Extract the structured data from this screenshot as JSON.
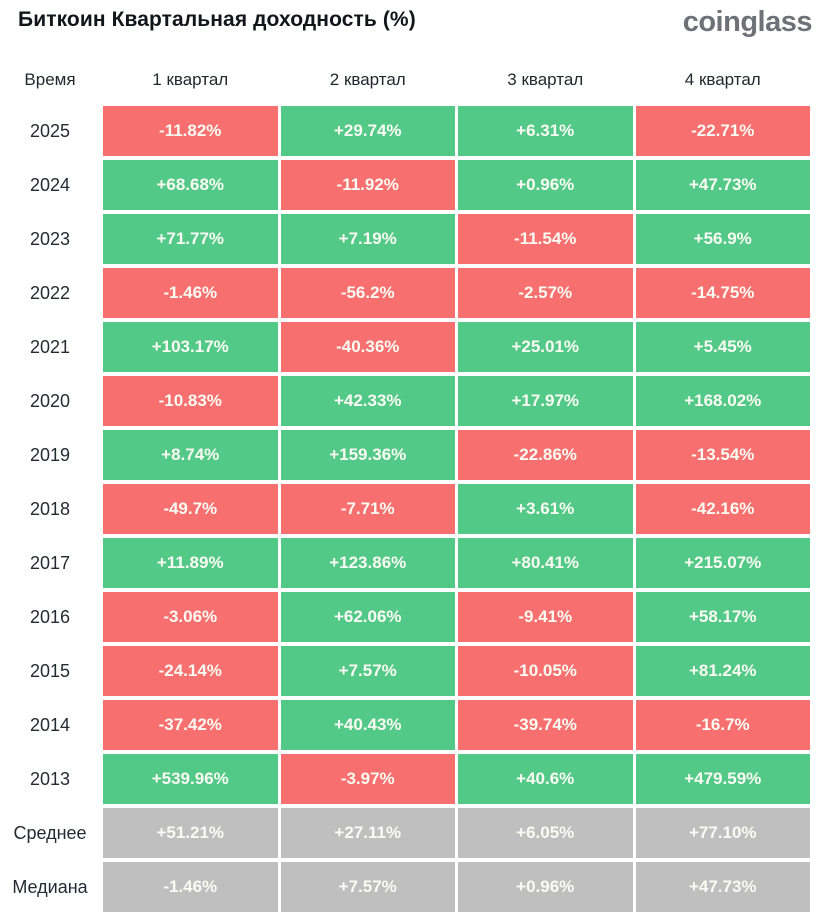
{
  "page": {
    "title": "Биткоин Квартальная доходность (%)",
    "logo": "coinglass"
  },
  "colors": {
    "positive": "#53c987",
    "negative": "#f7706f",
    "neutral": "#bfbfbf",
    "cell_text": "#fbfbf4",
    "label_text": "#262b33"
  },
  "table": {
    "columns": [
      "Время",
      "1 квартал",
      "2 квартал",
      "3 квартал",
      "4 квартал"
    ],
    "rows": [
      {
        "label": "2025",
        "kind": "year",
        "values": [
          "-11.82%",
          "+29.74%",
          "+6.31%",
          "-22.71%"
        ]
      },
      {
        "label": "2024",
        "kind": "year",
        "values": [
          "+68.68%",
          "-11.92%",
          "+0.96%",
          "+47.73%"
        ]
      },
      {
        "label": "2023",
        "kind": "year",
        "values": [
          "+71.77%",
          "+7.19%",
          "-11.54%",
          "+56.9%"
        ]
      },
      {
        "label": "2022",
        "kind": "year",
        "values": [
          "-1.46%",
          "-56.2%",
          "-2.57%",
          "-14.75%"
        ]
      },
      {
        "label": "2021",
        "kind": "year",
        "values": [
          "+103.17%",
          "-40.36%",
          "+25.01%",
          "+5.45%"
        ]
      },
      {
        "label": "2020",
        "kind": "year",
        "values": [
          "-10.83%",
          "+42.33%",
          "+17.97%",
          "+168.02%"
        ]
      },
      {
        "label": "2019",
        "kind": "year",
        "values": [
          "+8.74%",
          "+159.36%",
          "-22.86%",
          "-13.54%"
        ]
      },
      {
        "label": "2018",
        "kind": "year",
        "values": [
          "-49.7%",
          "-7.71%",
          "+3.61%",
          "-42.16%"
        ]
      },
      {
        "label": "2017",
        "kind": "year",
        "values": [
          "+11.89%",
          "+123.86%",
          "+80.41%",
          "+215.07%"
        ]
      },
      {
        "label": "2016",
        "kind": "year",
        "values": [
          "-3.06%",
          "+62.06%",
          "-9.41%",
          "+58.17%"
        ]
      },
      {
        "label": "2015",
        "kind": "year",
        "values": [
          "-24.14%",
          "+7.57%",
          "-10.05%",
          "+81.24%"
        ]
      },
      {
        "label": "2014",
        "kind": "year",
        "values": [
          "-37.42%",
          "+40.43%",
          "-39.74%",
          "-16.7%"
        ]
      },
      {
        "label": "2013",
        "kind": "year",
        "values": [
          "+539.96%",
          "-3.97%",
          "+40.6%",
          "+479.59%"
        ]
      },
      {
        "label": "Среднее",
        "kind": "summary",
        "values": [
          "+51.21%",
          "+27.11%",
          "+6.05%",
          "+77.10%"
        ]
      },
      {
        "label": "Медиана",
        "kind": "summary",
        "values": [
          "-1.46%",
          "+7.57%",
          "+0.96%",
          "+47.73%"
        ]
      }
    ]
  },
  "chart_data": {
    "type": "heatmap",
    "title": "Биткоин Квартальная доходность (%)",
    "columns": [
      "1 квартал",
      "2 квартал",
      "3 квартал",
      "4 квартал"
    ],
    "row_labels": [
      "2025",
      "2024",
      "2023",
      "2022",
      "2021",
      "2020",
      "2019",
      "2018",
      "2017",
      "2016",
      "2015",
      "2014",
      "2013",
      "Среднее",
      "Медиана"
    ],
    "values_pct": [
      [
        -11.82,
        29.74,
        6.31,
        -22.71
      ],
      [
        68.68,
        -11.92,
        0.96,
        47.73
      ],
      [
        71.77,
        7.19,
        -11.54,
        56.9
      ],
      [
        -1.46,
        -56.2,
        -2.57,
        -14.75
      ],
      [
        103.17,
        -40.36,
        25.01,
        5.45
      ],
      [
        -10.83,
        42.33,
        17.97,
        168.02
      ],
      [
        8.74,
        159.36,
        -22.86,
        -13.54
      ],
      [
        -49.7,
        -7.71,
        3.61,
        -42.16
      ],
      [
        11.89,
        123.86,
        80.41,
        215.07
      ],
      [
        -3.06,
        62.06,
        -9.41,
        58.17
      ],
      [
        -24.14,
        7.57,
        -10.05,
        81.24
      ],
      [
        -37.42,
        40.43,
        -39.74,
        -16.7
      ],
      [
        539.96,
        -3.97,
        40.6,
        479.59
      ],
      [
        51.21,
        27.11,
        6.05,
        77.1
      ],
      [
        -1.46,
        7.57,
        0.96,
        47.73
      ]
    ],
    "color_rule": "positive=green, negative=red, summary rows (Среднее/Медиана)=gray",
    "legend": "none",
    "grid": "white gaps between cells"
  }
}
